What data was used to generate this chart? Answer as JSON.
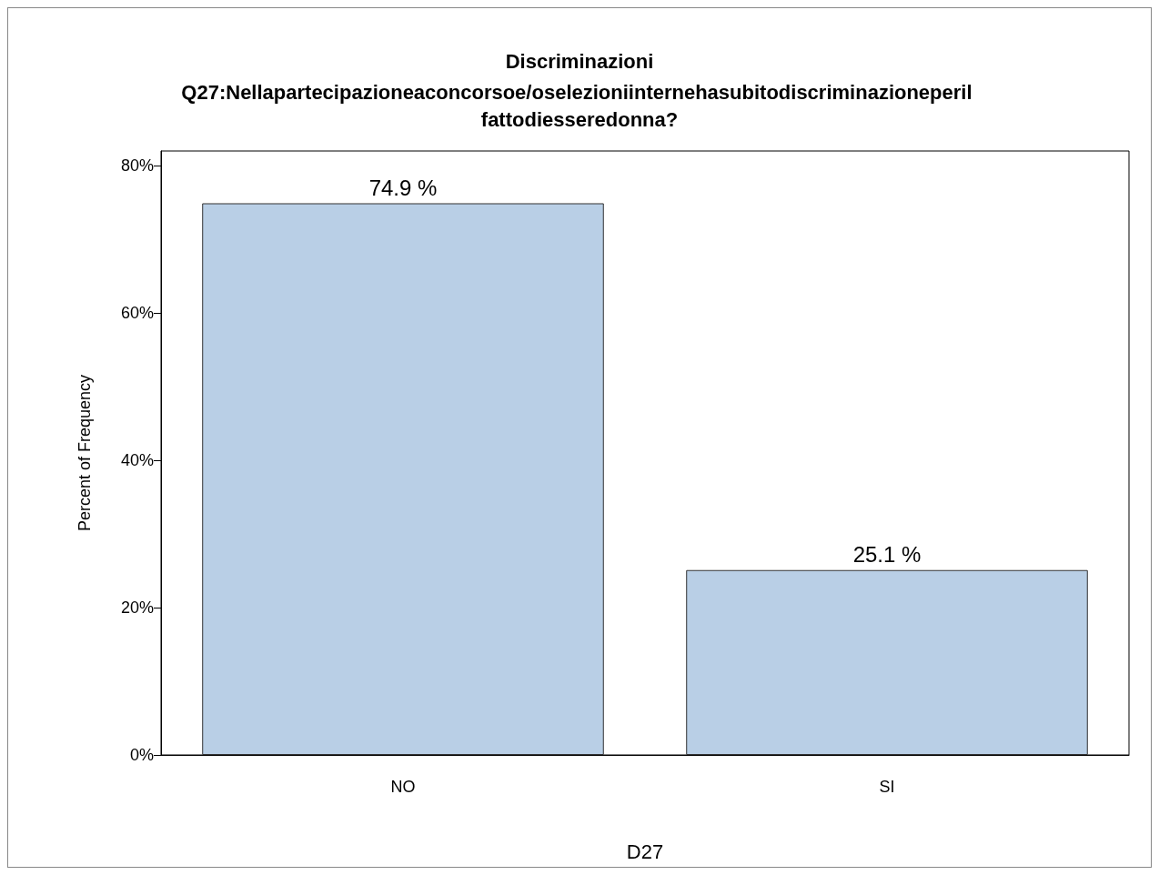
{
  "chart_data": {
    "type": "bar",
    "title": "Discriminazioni",
    "subtitle": "Q27:Nellapartecipazioneaconcorsoe/oselezioniinternehasubitodiscriminazioneperil fattodiesseredonna?",
    "xlabel": "D27",
    "ylabel": "Percent of Frequency",
    "categories": [
      "NO",
      "SI"
    ],
    "values": [
      74.9,
      25.1
    ],
    "value_labels": [
      "74.9 %",
      "25.1 %"
    ],
    "color": "#b9cfe6",
    "ylim": [
      0,
      82
    ],
    "yticks": [
      {
        "value": 0,
        "label": "0%"
      },
      {
        "value": 20,
        "label": "20%"
      },
      {
        "value": 40,
        "label": "40%"
      },
      {
        "value": 60,
        "label": "60%"
      },
      {
        "value": 80,
        "label": "80%"
      }
    ],
    "grid": false
  }
}
